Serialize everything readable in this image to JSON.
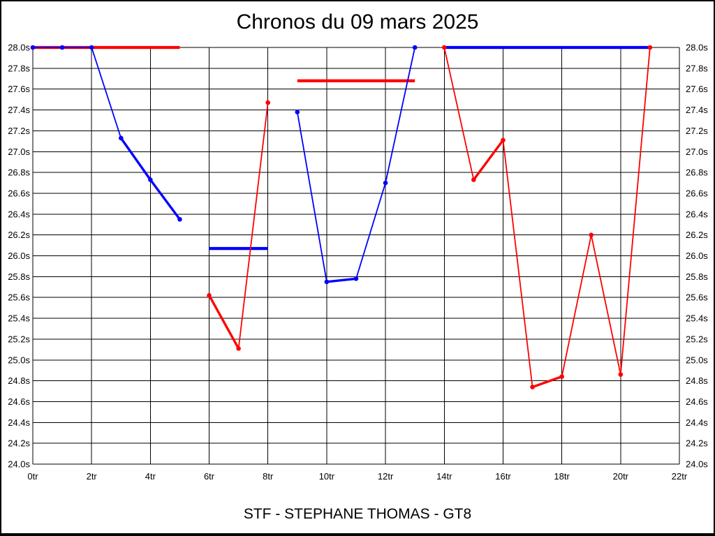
{
  "page": {
    "title": "Chronos du 09 mars 2025",
    "footer": "STF - STEPHANE THOMAS - GT8"
  },
  "chart_data": {
    "type": "line",
    "title": "Chronos du 09 mars 2025",
    "footer_label": "STF - STEPHANE THOMAS - GT8",
    "x_unit": "tr",
    "y_unit": "s",
    "xlim": [
      0,
      22
    ],
    "ylim": [
      24.0,
      28.0
    ],
    "grid": {
      "x_step": 2,
      "y_step": 0.2,
      "grid_on": true
    },
    "legend": "none",
    "x_ticks": [
      0,
      2,
      4,
      6,
      8,
      10,
      12,
      14,
      16,
      18,
      20,
      22
    ],
    "x_tick_labels": [
      "0tr",
      "2tr",
      "4tr",
      "6tr",
      "8tr",
      "10tr",
      "12tr",
      "14tr",
      "16tr",
      "18tr",
      "20tr",
      "22tr"
    ],
    "y_ticks": [
      28.0,
      27.8,
      27.6,
      27.4,
      27.2,
      27.0,
      26.8,
      26.6,
      26.4,
      26.2,
      26.0,
      25.8,
      25.6,
      25.4,
      25.2,
      25.0,
      24.8,
      24.6,
      24.4,
      24.2,
      24.0
    ],
    "y_tick_labels": [
      "28.0s",
      "27.8s",
      "27.6s",
      "27.4s",
      "27.2s",
      "27.0s",
      "26.8s",
      "26.6s",
      "26.4s",
      "26.2s",
      "26.0s",
      "25.8s",
      "25.6s",
      "25.4s",
      "25.2s",
      "25.0s",
      "24.8s",
      "24.6s",
      "24.4s",
      "24.2s",
      "24.0s"
    ],
    "colors": {
      "red": "#ff0000",
      "blue": "#0000ff",
      "grid": "#000000",
      "background": "#ffffff",
      "text": "#000000"
    },
    "series": [
      {
        "name": "run-1-blue",
        "color": "blue",
        "points": [
          [
            0,
            28.0
          ],
          [
            1,
            28.0
          ],
          [
            2,
            28.0
          ],
          [
            3,
            27.13
          ],
          [
            4,
            26.73
          ],
          [
            5,
            26.35
          ]
        ],
        "thick_pairs": [
          [
            3,
            4
          ],
          [
            4,
            5
          ]
        ]
      },
      {
        "name": "run-2-red",
        "color": "red",
        "points": [
          [
            6,
            25.62
          ],
          [
            7,
            25.11
          ],
          [
            8,
            27.47
          ]
        ],
        "thick_pairs": [
          [
            6,
            7
          ]
        ]
      },
      {
        "name": "run-3-blue",
        "color": "blue",
        "points": [
          [
            9,
            27.38
          ],
          [
            10,
            25.75
          ],
          [
            11,
            25.78
          ],
          [
            12,
            26.7
          ],
          [
            13,
            28.0
          ]
        ],
        "thick_pairs": [
          [
            10,
            11
          ]
        ]
      },
      {
        "name": "run-4-red",
        "color": "red",
        "points": [
          [
            14,
            28.0
          ],
          [
            15,
            26.73
          ],
          [
            16,
            27.11
          ],
          [
            17,
            24.74
          ],
          [
            18,
            24.84
          ],
          [
            19,
            26.2
          ],
          [
            20,
            24.86
          ],
          [
            21,
            28.0
          ]
        ],
        "thick_pairs": [
          [
            15,
            16
          ],
          [
            17,
            18
          ]
        ]
      }
    ],
    "reference_lines": [
      {
        "name": "reference-line-1",
        "color": "red",
        "y": 28.0,
        "x_start": 0,
        "x_end": 5
      },
      {
        "name": "reference-line-2",
        "color": "blue",
        "y": 26.07,
        "x_start": 6,
        "x_end": 8
      },
      {
        "name": "reference-line-3",
        "color": "red",
        "y": 27.68,
        "x_start": 9,
        "x_end": 13
      },
      {
        "name": "reference-line-4",
        "color": "blue",
        "y": 28.0,
        "x_start": 14,
        "x_end": 21
      }
    ]
  }
}
